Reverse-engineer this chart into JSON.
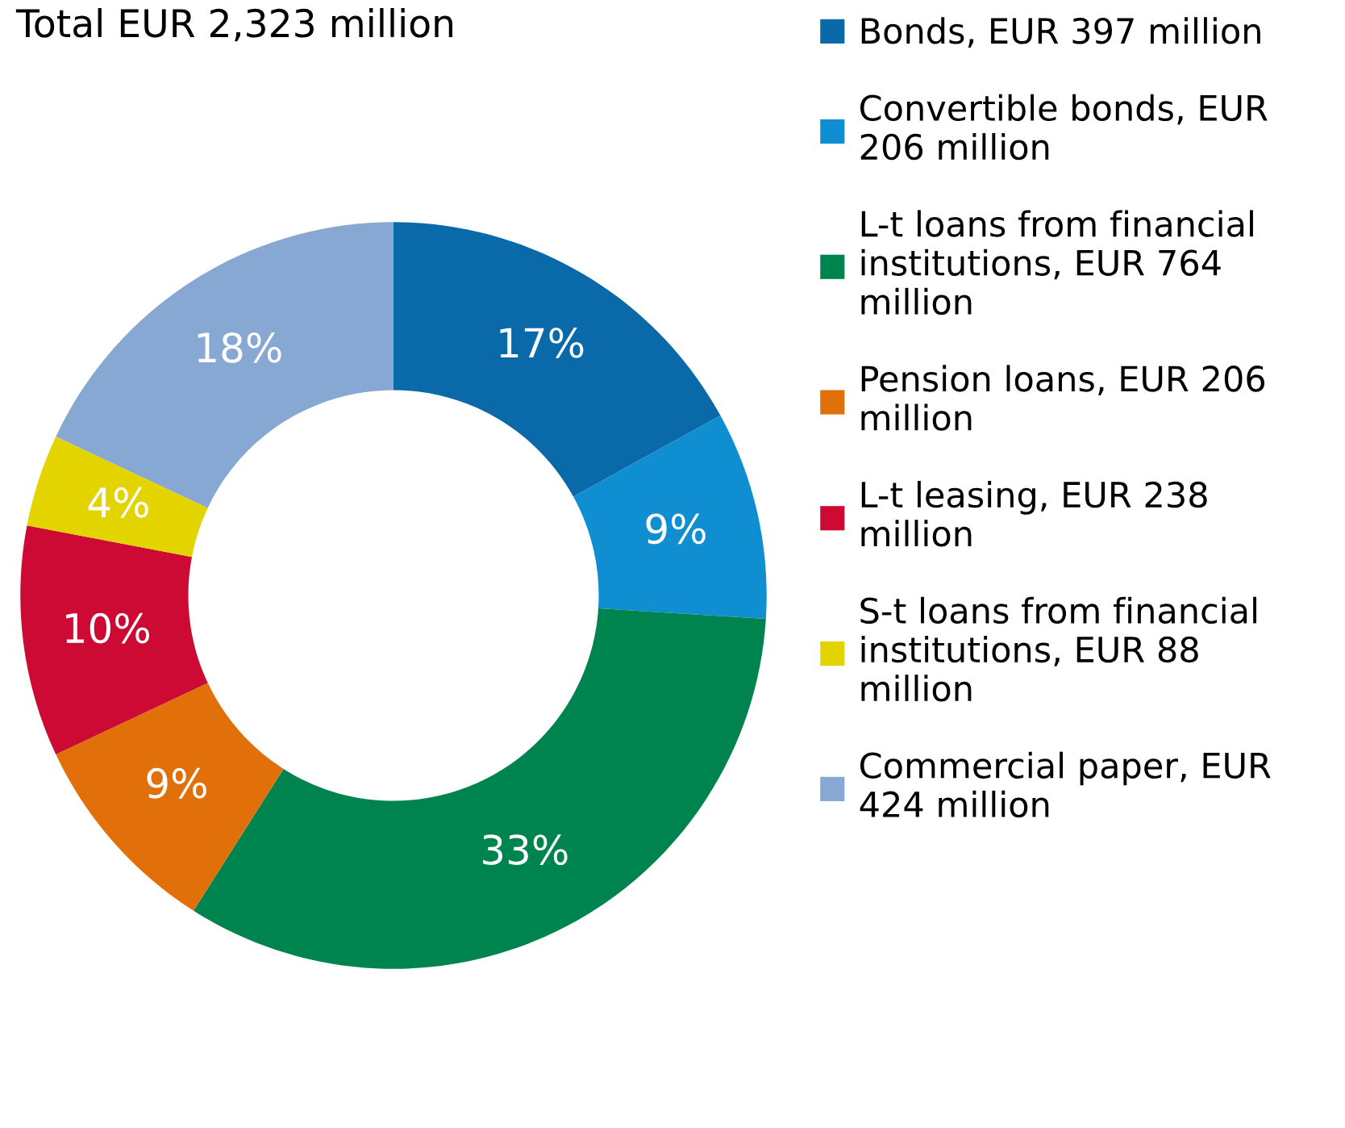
{
  "chart_data": {
    "type": "donut",
    "title": "Total EUR 2,323 million",
    "categories": [
      "Bonds, EUR 397 million",
      "Convertible bonds, EUR\n206 million",
      "L-t loans from financial\ninstitutions, EUR 764\nmillion",
      "Pension loans, EUR 206\nmillion",
      "L-t leasing, EUR 238\nmillion",
      "S-t loans from financial\ninstitutions, EUR 88\nmillion",
      "Commercial paper, EUR\n424 million"
    ],
    "values": [
      17,
      9,
      33,
      9,
      10,
      4,
      18
    ],
    "value_labels": [
      "17%",
      "9%",
      "33%",
      "9%",
      "10%",
      "4%",
      "18%"
    ],
    "colors": [
      "#0a69a8",
      "#0f8fd1",
      "#00844f",
      "#e2700a",
      "#cc0a33",
      "#e3d400",
      "#86a8d3"
    ],
    "legend": "right"
  }
}
